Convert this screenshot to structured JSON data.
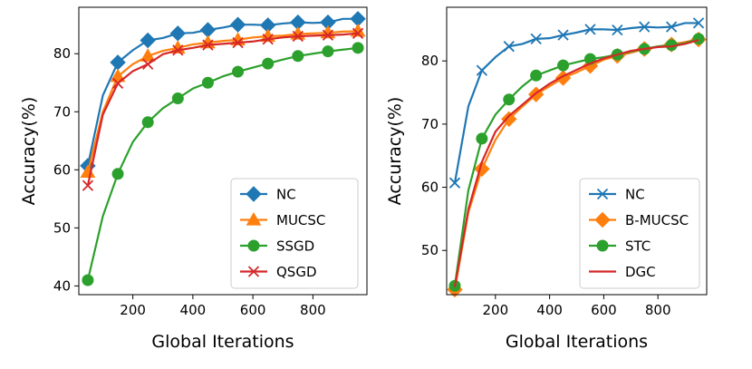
{
  "chart_data": [
    {
      "type": "line",
      "title": "",
      "xlabel": "Global Iterations",
      "ylabel": "Accuracy(%)",
      "xlim": [
        20,
        980
      ],
      "ylim": [
        38.5,
        88
      ],
      "xticks": [
        200,
        400,
        600,
        800
      ],
      "yticks": [
        40,
        50,
        60,
        70,
        80
      ],
      "grid": false,
      "legend_position": "bottom-right",
      "series": [
        {
          "name": "NC",
          "color": "#1f77b4",
          "marker": "diamond",
          "x": [
            50,
            100,
            150,
            200,
            250,
            300,
            350,
            400,
            450,
            500,
            550,
            600,
            650,
            700,
            750,
            800,
            850,
            900,
            950
          ],
          "y": [
            60.7,
            72.8,
            78.5,
            80.6,
            82.3,
            82.7,
            83.5,
            83.6,
            84.1,
            84.5,
            85.0,
            85.0,
            84.9,
            85.2,
            85.4,
            85.3,
            85.4,
            86.0,
            86.0
          ]
        },
        {
          "name": "MUCSC",
          "color": "#ff7f0e",
          "marker": "triangle",
          "x": [
            50,
            100,
            150,
            200,
            250,
            300,
            350,
            400,
            450,
            500,
            550,
            600,
            650,
            700,
            750,
            800,
            850,
            900,
            950
          ],
          "y": [
            59.6,
            70.0,
            76.1,
            78.2,
            79.6,
            80.5,
            81.0,
            81.6,
            81.9,
            82.2,
            82.4,
            82.8,
            83.0,
            83.1,
            83.4,
            83.5,
            83.6,
            83.8,
            83.9
          ]
        },
        {
          "name": "SSGD",
          "color": "#2ca02c",
          "marker": "circle",
          "x": [
            50,
            100,
            150,
            200,
            250,
            300,
            350,
            400,
            450,
            500,
            550,
            600,
            650,
            700,
            750,
            800,
            850,
            900,
            950
          ],
          "y": [
            41.0,
            52.0,
            59.3,
            64.8,
            68.2,
            70.6,
            72.3,
            74.0,
            75.0,
            76.1,
            76.9,
            77.6,
            78.3,
            79.0,
            79.6,
            80.0,
            80.4,
            80.7,
            81.0
          ]
        },
        {
          "name": "QSGD",
          "color": "#d62728",
          "marker": "x",
          "x": [
            50,
            100,
            150,
            200,
            250,
            300,
            350,
            400,
            450,
            500,
            550,
            600,
            650,
            700,
            750,
            800,
            850,
            900,
            950
          ],
          "y": [
            57.3,
            69.5,
            74.9,
            77.0,
            78.2,
            79.9,
            80.6,
            81.0,
            81.5,
            81.7,
            81.9,
            82.1,
            82.5,
            82.8,
            83.0,
            83.1,
            83.2,
            83.3,
            83.5
          ]
        }
      ]
    },
    {
      "type": "line",
      "title": "",
      "xlabel": "Global Iterations",
      "ylabel": "Accuracy(%)",
      "xlim": [
        20,
        980
      ],
      "ylim": [
        43,
        88.5
      ],
      "xticks": [
        200,
        400,
        600,
        800
      ],
      "yticks": [
        50,
        60,
        70,
        80
      ],
      "grid": false,
      "legend_position": "bottom-right",
      "series": [
        {
          "name": "NC",
          "color": "#1f77b4",
          "marker": "x",
          "x": [
            50,
            100,
            150,
            200,
            250,
            300,
            350,
            400,
            450,
            500,
            550,
            600,
            650,
            700,
            750,
            800,
            850,
            900,
            950
          ],
          "y": [
            60.7,
            72.8,
            78.5,
            80.6,
            82.3,
            82.7,
            83.5,
            83.6,
            84.1,
            84.5,
            85.0,
            85.0,
            84.9,
            85.2,
            85.4,
            85.3,
            85.4,
            86.0,
            86.0
          ]
        },
        {
          "name": "B-MUCSC",
          "color": "#ff7f0e",
          "marker": "diamond",
          "x": [
            50,
            100,
            150,
            200,
            250,
            300,
            350,
            400,
            450,
            500,
            550,
            600,
            650,
            700,
            750,
            800,
            850,
            900,
            950
          ],
          "y": [
            43.8,
            56.0,
            62.9,
            67.5,
            70.8,
            72.8,
            74.7,
            76.0,
            77.3,
            78.2,
            79.2,
            80.2,
            80.8,
            81.3,
            81.9,
            82.3,
            82.6,
            83.0,
            83.4
          ]
        },
        {
          "name": "STC",
          "color": "#2ca02c",
          "marker": "circle",
          "x": [
            50,
            100,
            150,
            200,
            250,
            300,
            350,
            400,
            450,
            500,
            550,
            600,
            650,
            700,
            750,
            800,
            850,
            900,
            950
          ],
          "y": [
            44.4,
            59.5,
            67.7,
            71.5,
            73.9,
            76.0,
            77.7,
            78.5,
            79.3,
            79.8,
            80.3,
            80.6,
            81.0,
            81.5,
            81.9,
            82.3,
            82.5,
            82.8,
            83.5
          ]
        },
        {
          "name": "DGC",
          "color": "#d62728",
          "marker": "none",
          "x": [
            50,
            100,
            150,
            200,
            250,
            300,
            350,
            400,
            450,
            500,
            550,
            600,
            650,
            700,
            750,
            800,
            850,
            900,
            950
          ],
          "y": [
            44.2,
            56.5,
            64.0,
            68.8,
            71.3,
            73.1,
            74.9,
            76.4,
            77.6,
            78.6,
            79.6,
            80.4,
            81.0,
            81.6,
            81.9,
            82.2,
            82.3,
            82.7,
            83.3
          ]
        }
      ]
    }
  ]
}
